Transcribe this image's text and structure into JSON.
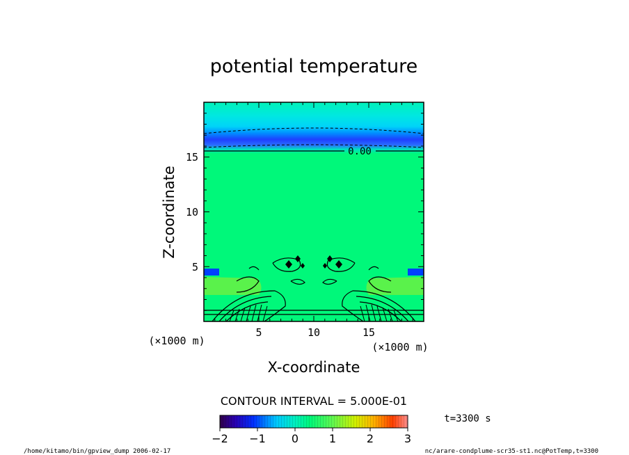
{
  "chart_data": {
    "type": "heatmap",
    "title": "potential temperature",
    "xlabel": "X-coordinate",
    "ylabel": "Z-coordinate",
    "x_unit": "(×1000 m)",
    "z_unit": "(×1000 m)",
    "xlim": [
      0,
      20
    ],
    "ylim": [
      0,
      20
    ],
    "x_ticks": [
      "5",
      "10",
      "15"
    ],
    "y_ticks": [
      "5",
      "10",
      "15"
    ],
    "contour_label": "0.00",
    "contour_interval_label": "CONTOUR INTERVAL = 5.000E-01",
    "time_label": "t=3300 s",
    "colorbar": {
      "range": [
        -2,
        3
      ],
      "ticks": [
        "−2",
        "−1",
        "0",
        "1",
        "2",
        "3"
      ]
    }
  },
  "footer": {
    "left": "/home/kitamo/bin/gpview_dump  2006-02-17",
    "right": "nc/arare-condplume-scr35-st1.nc@PotTemp,t=3300"
  },
  "colors": {
    "background_field": "#00f87a",
    "upper_cyan": "#00e6e6",
    "tropopause_blue": "#1e50ff"
  }
}
